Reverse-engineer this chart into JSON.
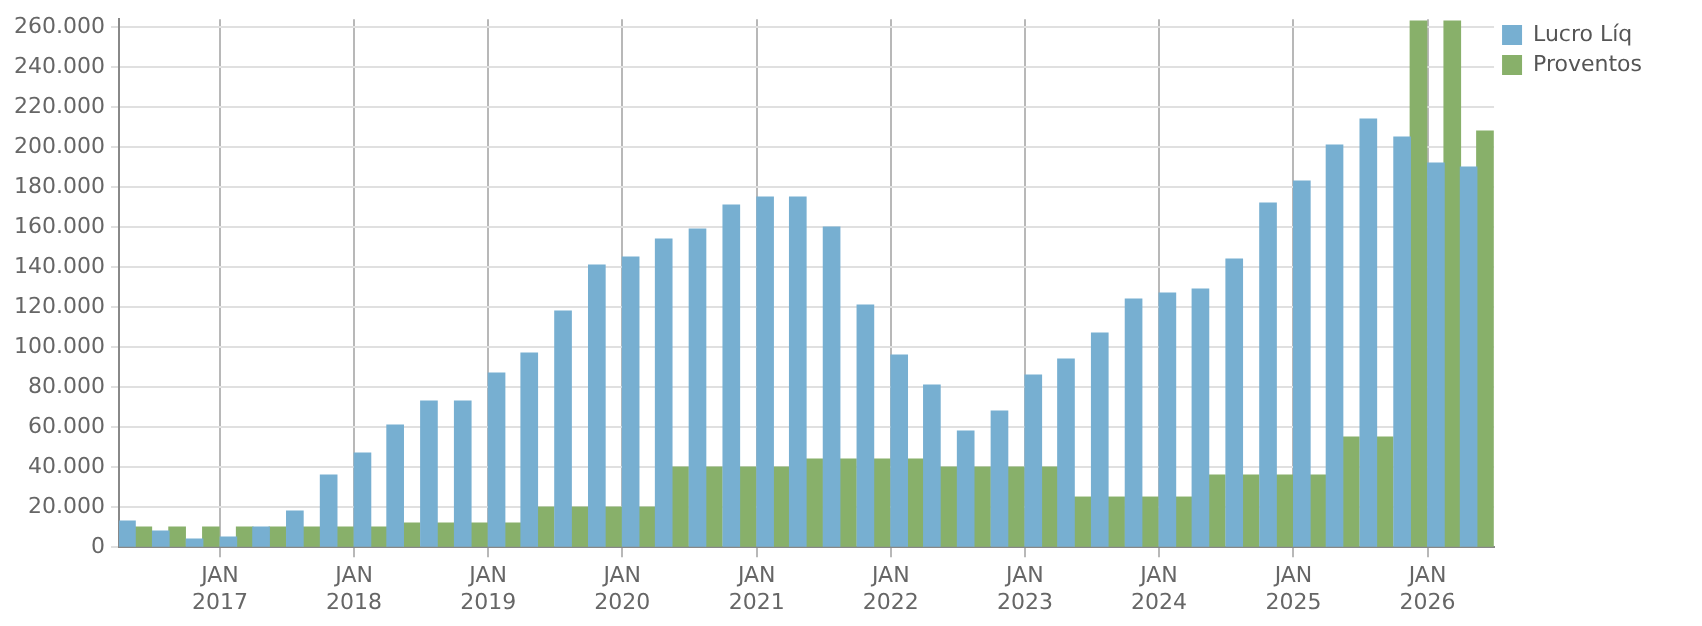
{
  "chart_data": {
    "type": "bar",
    "x": [
      "2016-05-15",
      "2016-08-15",
      "2016-11-15",
      "2017-02-15",
      "2017-05-15",
      "2017-08-15",
      "2017-11-15",
      "2018-02-15",
      "2018-05-15",
      "2018-08-15",
      "2018-11-15",
      "2019-02-15",
      "2019-05-15",
      "2019-08-15",
      "2019-11-15",
      "2020-02-15",
      "2020-05-15",
      "2020-08-15",
      "2020-11-15",
      "2021-02-15",
      "2021-05-15",
      "2021-08-15",
      "2021-11-15",
      "2022-02-15",
      "2022-05-15",
      "2022-08-15",
      "2022-11-15",
      "2023-02-15",
      "2023-05-15",
      "2023-08-15",
      "2023-11-15",
      "2024-02-15",
      "2024-05-15",
      "2024-08-15",
      "2024-11-15",
      "2025-02-15",
      "2025-05-15",
      "2025-08-15",
      "2025-11-15",
      "2026-02-15",
      "2026-05-15"
    ],
    "series": [
      {
        "name": "Lucro Líq",
        "color": "#77afd1",
        "values": [
          13000,
          8000,
          4000,
          5000,
          10000,
          18000,
          36000,
          47000,
          61000,
          73000,
          73000,
          87000,
          97000,
          118000,
          141000,
          145000,
          154000,
          159000,
          171000,
          175000,
          175000,
          160000,
          121000,
          96000,
          81000,
          58000,
          68000,
          86000,
          94000,
          107000,
          124000,
          127000,
          129000,
          144000,
          172000,
          183000,
          201000,
          214000,
          205000,
          192000,
          190000
        ]
      },
      {
        "name": "Proventos",
        "color": "#88b06a",
        "values": [
          10000,
          10000,
          10000,
          10000,
          10000,
          10000,
          10000,
          10000,
          12000,
          12000,
          12000,
          12000,
          20000,
          20000,
          20000,
          20000,
          40000,
          40000,
          40000,
          40000,
          44000,
          44000,
          44000,
          44000,
          40000,
          40000,
          40000,
          40000,
          25000,
          25000,
          25000,
          25000,
          36000,
          36000,
          36000,
          36000,
          55000,
          55000,
          263000,
          263000,
          208000
        ]
      }
    ],
    "xlim": [
      "2016-04-01",
      "2026-07-01"
    ],
    "xticks": [
      {
        "value": "2017-01-01",
        "label": "JAN\n2017"
      },
      {
        "value": "2018-01-01",
        "label": "JAN\n2018"
      },
      {
        "value": "2019-01-01",
        "label": "JAN\n2019"
      },
      {
        "value": "2020-01-01",
        "label": "JAN\n2020"
      },
      {
        "value": "2021-01-01",
        "label": "JAN\n2021"
      },
      {
        "value": "2022-01-01",
        "label": "JAN\n2022"
      },
      {
        "value": "2023-01-01",
        "label": "JAN\n2023"
      },
      {
        "value": "2024-01-01",
        "label": "JAN\n2024"
      },
      {
        "value": "2025-01-01",
        "label": "JAN\n2025"
      },
      {
        "value": "2026-01-01",
        "label": "JAN\n2026"
      }
    ],
    "ylim": [
      0,
      264000
    ],
    "yticks": [
      0,
      {
        "value": 20000,
        "label": "20.000"
      },
      {
        "value": 40000,
        "label": "40.000"
      },
      {
        "value": 60000,
        "label": "60.000"
      },
      {
        "value": 80000,
        "label": "80.000"
      },
      {
        "value": 100000,
        "label": "100.000"
      },
      {
        "value": 120000,
        "label": "120.000"
      },
      {
        "value": 140000,
        "label": "140.000"
      },
      {
        "value": 160000,
        "label": "160.000"
      },
      {
        "value": 180000,
        "label": "180.000"
      },
      {
        "value": 200000,
        "label": "200.000"
      },
      {
        "value": 220000,
        "label": "220.000"
      },
      {
        "value": 240000,
        "label": "240.000"
      },
      {
        "value": 260000,
        "label": "260.000"
      }
    ],
    "grid": true,
    "legend": "top right"
  }
}
